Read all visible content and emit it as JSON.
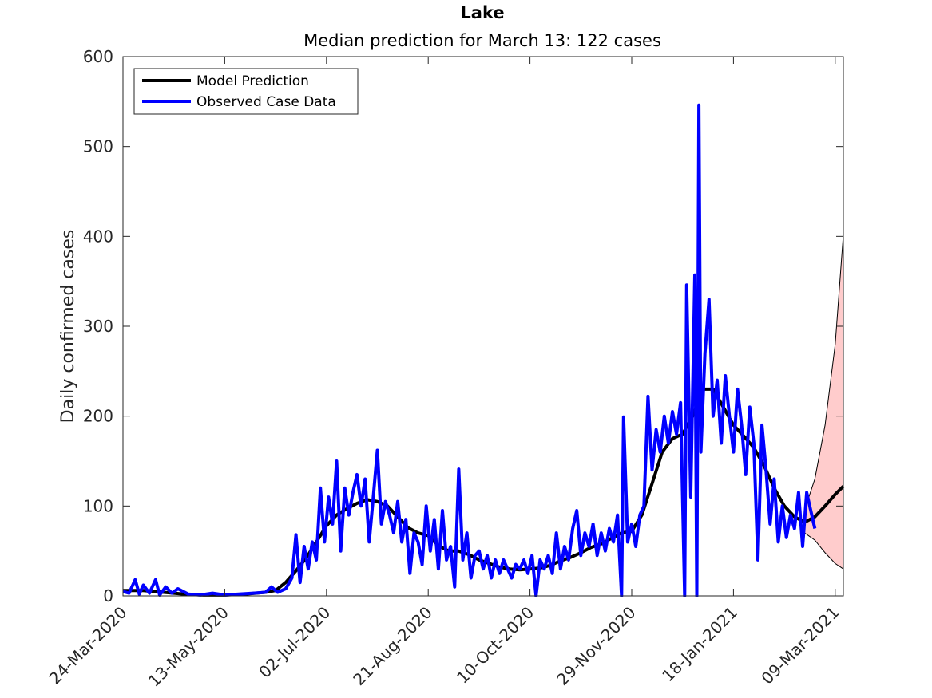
{
  "chart_data": {
    "type": "line",
    "title": "Lake",
    "subtitle": "Median prediction for March 13: 122 cases",
    "ylabel": "Daily confirmed cases",
    "xlabel": "",
    "ylim": [
      0,
      600
    ],
    "yticks": [
      0,
      100,
      200,
      300,
      400,
      500,
      600
    ],
    "xlim": [
      "2020-03-24",
      "2021-03-13"
    ],
    "xticks": [
      {
        "date": "2020-03-24",
        "label": "24-Mar-2020"
      },
      {
        "date": "2020-05-13",
        "label": "13-May-2020"
      },
      {
        "date": "2020-07-02",
        "label": "02-Jul-2020"
      },
      {
        "date": "2020-08-21",
        "label": "21-Aug-2020"
      },
      {
        "date": "2020-10-10",
        "label": "10-Oct-2020"
      },
      {
        "date": "2020-11-29",
        "label": "29-Nov-2020"
      },
      {
        "date": "2021-01-18",
        "label": "18-Jan-2021"
      },
      {
        "date": "2021-03-09",
        "label": "09-Mar-2021"
      }
    ],
    "grid": false,
    "legend_position": "top-left",
    "colors": {
      "prediction": "#000000",
      "observed": "#0000ff",
      "band_fill": "#ffcccc",
      "band_edge": "#000000"
    },
    "series": [
      {
        "name": "Model Prediction",
        "role": "median",
        "points": [
          [
            "2020-03-24",
            6
          ],
          [
            "2020-04-03",
            6
          ],
          [
            "2020-04-13",
            4
          ],
          [
            "2020-04-23",
            2
          ],
          [
            "2020-05-03",
            1
          ],
          [
            "2020-05-13",
            1
          ],
          [
            "2020-05-23",
            2
          ],
          [
            "2020-06-02",
            4
          ],
          [
            "2020-06-07",
            6
          ],
          [
            "2020-06-12",
            15
          ],
          [
            "2020-06-17",
            28
          ],
          [
            "2020-06-22",
            42
          ],
          [
            "2020-06-27",
            60
          ],
          [
            "2020-07-02",
            78
          ],
          [
            "2020-07-07",
            90
          ],
          [
            "2020-07-12",
            97
          ],
          [
            "2020-07-17",
            103
          ],
          [
            "2020-07-22",
            107
          ],
          [
            "2020-07-27",
            105
          ],
          [
            "2020-08-01",
            100
          ],
          [
            "2020-08-06",
            88
          ],
          [
            "2020-08-11",
            76
          ],
          [
            "2020-08-16",
            70
          ],
          [
            "2020-08-21",
            67
          ],
          [
            "2020-08-26",
            56
          ],
          [
            "2020-08-31",
            50
          ],
          [
            "2020-09-05",
            50
          ],
          [
            "2020-09-10",
            46
          ],
          [
            "2020-09-15",
            40
          ],
          [
            "2020-09-20",
            36
          ],
          [
            "2020-09-25",
            32
          ],
          [
            "2020-09-30",
            30
          ],
          [
            "2020-10-05",
            29
          ],
          [
            "2020-10-10",
            30
          ],
          [
            "2020-10-15",
            31
          ],
          [
            "2020-10-20",
            34
          ],
          [
            "2020-10-25",
            39
          ],
          [
            "2020-10-30",
            43
          ],
          [
            "2020-11-04",
            48
          ],
          [
            "2020-11-09",
            54
          ],
          [
            "2020-11-14",
            58
          ],
          [
            "2020-11-19",
            64
          ],
          [
            "2020-11-24",
            70
          ],
          [
            "2020-11-29",
            72
          ],
          [
            "2020-12-04",
            90
          ],
          [
            "2020-12-09",
            125
          ],
          [
            "2020-12-14",
            160
          ],
          [
            "2020-12-19",
            175
          ],
          [
            "2020-12-24",
            180
          ],
          [
            "2020-12-29",
            200
          ],
          [
            "2021-01-03",
            230
          ],
          [
            "2021-01-08",
            230
          ],
          [
            "2021-01-13",
            210
          ],
          [
            "2021-01-18",
            190
          ],
          [
            "2021-01-23",
            178
          ],
          [
            "2021-01-28",
            165
          ],
          [
            "2021-02-02",
            145
          ],
          [
            "2021-02-07",
            120
          ],
          [
            "2021-02-12",
            100
          ],
          [
            "2021-02-17",
            88
          ],
          [
            "2021-02-22",
            82
          ],
          [
            "2021-02-27",
            88
          ],
          [
            "2021-03-04",
            100
          ],
          [
            "2021-03-09",
            113
          ],
          [
            "2021-03-13",
            122
          ]
        ]
      },
      {
        "name": "",
        "role": "band",
        "upper": [
          [
            "2021-02-22",
            96
          ],
          [
            "2021-02-27",
            130
          ],
          [
            "2021-03-04",
            190
          ],
          [
            "2021-03-09",
            280
          ],
          [
            "2021-03-13",
            402
          ]
        ],
        "lower": [
          [
            "2021-02-22",
            70
          ],
          [
            "2021-02-27",
            62
          ],
          [
            "2021-03-04",
            48
          ],
          [
            "2021-03-09",
            36
          ],
          [
            "2021-03-13",
            30
          ]
        ]
      },
      {
        "name": "Observed Case Data",
        "role": "observed",
        "points": [
          [
            "2020-03-24",
            5
          ],
          [
            "2020-03-27",
            3
          ],
          [
            "2020-03-30",
            18
          ],
          [
            "2020-04-01",
            2
          ],
          [
            "2020-04-03",
            12
          ],
          [
            "2020-04-06",
            3
          ],
          [
            "2020-04-09",
            18
          ],
          [
            "2020-04-11",
            1
          ],
          [
            "2020-04-14",
            10
          ],
          [
            "2020-04-17",
            3
          ],
          [
            "2020-04-20",
            8
          ],
          [
            "2020-04-25",
            2
          ],
          [
            "2020-05-01",
            1
          ],
          [
            "2020-05-07",
            3
          ],
          [
            "2020-05-13",
            1
          ],
          [
            "2020-05-20",
            2
          ],
          [
            "2020-05-27",
            3
          ],
          [
            "2020-06-02",
            4
          ],
          [
            "2020-06-05",
            10
          ],
          [
            "2020-06-08",
            4
          ],
          [
            "2020-06-12",
            8
          ],
          [
            "2020-06-15",
            20
          ],
          [
            "2020-06-17",
            68
          ],
          [
            "2020-06-19",
            15
          ],
          [
            "2020-06-21",
            55
          ],
          [
            "2020-06-23",
            30
          ],
          [
            "2020-06-25",
            60
          ],
          [
            "2020-06-27",
            40
          ],
          [
            "2020-06-29",
            120
          ],
          [
            "2020-07-01",
            60
          ],
          [
            "2020-07-03",
            110
          ],
          [
            "2020-07-05",
            80
          ],
          [
            "2020-07-07",
            150
          ],
          [
            "2020-07-09",
            50
          ],
          [
            "2020-07-11",
            120
          ],
          [
            "2020-07-13",
            90
          ],
          [
            "2020-07-15",
            115
          ],
          [
            "2020-07-17",
            135
          ],
          [
            "2020-07-19",
            100
          ],
          [
            "2020-07-21",
            130
          ],
          [
            "2020-07-23",
            60
          ],
          [
            "2020-07-25",
            110
          ],
          [
            "2020-07-27",
            162
          ],
          [
            "2020-07-29",
            80
          ],
          [
            "2020-07-31",
            105
          ],
          [
            "2020-08-02",
            90
          ],
          [
            "2020-08-04",
            70
          ],
          [
            "2020-08-06",
            105
          ],
          [
            "2020-08-08",
            60
          ],
          [
            "2020-08-10",
            85
          ],
          [
            "2020-08-12",
            25
          ],
          [
            "2020-08-14",
            70
          ],
          [
            "2020-08-16",
            60
          ],
          [
            "2020-08-18",
            35
          ],
          [
            "2020-08-20",
            100
          ],
          [
            "2020-08-22",
            50
          ],
          [
            "2020-08-24",
            85
          ],
          [
            "2020-08-26",
            30
          ],
          [
            "2020-08-28",
            95
          ],
          [
            "2020-08-30",
            40
          ],
          [
            "2020-09-01",
            55
          ],
          [
            "2020-09-03",
            10
          ],
          [
            "2020-09-05",
            141
          ],
          [
            "2020-09-07",
            40
          ],
          [
            "2020-09-09",
            70
          ],
          [
            "2020-09-11",
            20
          ],
          [
            "2020-09-13",
            45
          ],
          [
            "2020-09-15",
            50
          ],
          [
            "2020-09-17",
            30
          ],
          [
            "2020-09-19",
            45
          ],
          [
            "2020-09-21",
            20
          ],
          [
            "2020-09-23",
            40
          ],
          [
            "2020-09-25",
            25
          ],
          [
            "2020-09-27",
            40
          ],
          [
            "2020-09-29",
            30
          ],
          [
            "2020-10-01",
            20
          ],
          [
            "2020-10-03",
            35
          ],
          [
            "2020-10-05",
            30
          ],
          [
            "2020-10-07",
            40
          ],
          [
            "2020-10-09",
            25
          ],
          [
            "2020-10-11",
            45
          ],
          [
            "2020-10-13",
            0
          ],
          [
            "2020-10-15",
            40
          ],
          [
            "2020-10-17",
            30
          ],
          [
            "2020-10-19",
            45
          ],
          [
            "2020-10-21",
            25
          ],
          [
            "2020-10-23",
            70
          ],
          [
            "2020-10-25",
            30
          ],
          [
            "2020-10-27",
            55
          ],
          [
            "2020-10-29",
            40
          ],
          [
            "2020-10-31",
            75
          ],
          [
            "2020-11-02",
            95
          ],
          [
            "2020-11-04",
            45
          ],
          [
            "2020-11-06",
            70
          ],
          [
            "2020-11-08",
            55
          ],
          [
            "2020-11-10",
            80
          ],
          [
            "2020-11-12",
            45
          ],
          [
            "2020-11-14",
            70
          ],
          [
            "2020-11-16",
            50
          ],
          [
            "2020-11-18",
            75
          ],
          [
            "2020-11-20",
            60
          ],
          [
            "2020-11-22",
            90
          ],
          [
            "2020-11-24",
            0
          ],
          [
            "2020-11-25",
            199
          ],
          [
            "2020-11-27",
            60
          ],
          [
            "2020-11-29",
            80
          ],
          [
            "2020-12-01",
            55
          ],
          [
            "2020-12-03",
            90
          ],
          [
            "2020-12-05",
            100
          ],
          [
            "2020-12-07",
            222
          ],
          [
            "2020-12-09",
            140
          ],
          [
            "2020-12-11",
            185
          ],
          [
            "2020-12-13",
            160
          ],
          [
            "2020-12-15",
            200
          ],
          [
            "2020-12-17",
            170
          ],
          [
            "2020-12-19",
            205
          ],
          [
            "2020-12-21",
            180
          ],
          [
            "2020-12-23",
            215
          ],
          [
            "2020-12-25",
            0
          ],
          [
            "2020-12-26",
            346
          ],
          [
            "2020-12-28",
            110
          ],
          [
            "2020-12-30",
            357
          ],
          [
            "2020-12-31",
            0
          ],
          [
            "2021-01-01",
            546
          ],
          [
            "2021-01-02",
            160
          ],
          [
            "2021-01-04",
            270
          ],
          [
            "2021-01-06",
            330
          ],
          [
            "2021-01-08",
            200
          ],
          [
            "2021-01-10",
            240
          ],
          [
            "2021-01-12",
            170
          ],
          [
            "2021-01-14",
            245
          ],
          [
            "2021-01-16",
            200
          ],
          [
            "2021-01-18",
            160
          ],
          [
            "2021-01-20",
            230
          ],
          [
            "2021-01-22",
            190
          ],
          [
            "2021-01-24",
            135
          ],
          [
            "2021-01-26",
            210
          ],
          [
            "2021-01-28",
            170
          ],
          [
            "2021-01-30",
            40
          ],
          [
            "2021-02-01",
            190
          ],
          [
            "2021-02-03",
            140
          ],
          [
            "2021-02-05",
            80
          ],
          [
            "2021-02-07",
            130
          ],
          [
            "2021-02-09",
            60
          ],
          [
            "2021-02-11",
            100
          ],
          [
            "2021-02-13",
            65
          ],
          [
            "2021-02-15",
            90
          ],
          [
            "2021-02-17",
            75
          ],
          [
            "2021-02-19",
            115
          ],
          [
            "2021-02-21",
            55
          ],
          [
            "2021-02-23",
            115
          ],
          [
            "2021-02-25",
            95
          ],
          [
            "2021-02-27",
            75
          ]
        ]
      }
    ]
  }
}
